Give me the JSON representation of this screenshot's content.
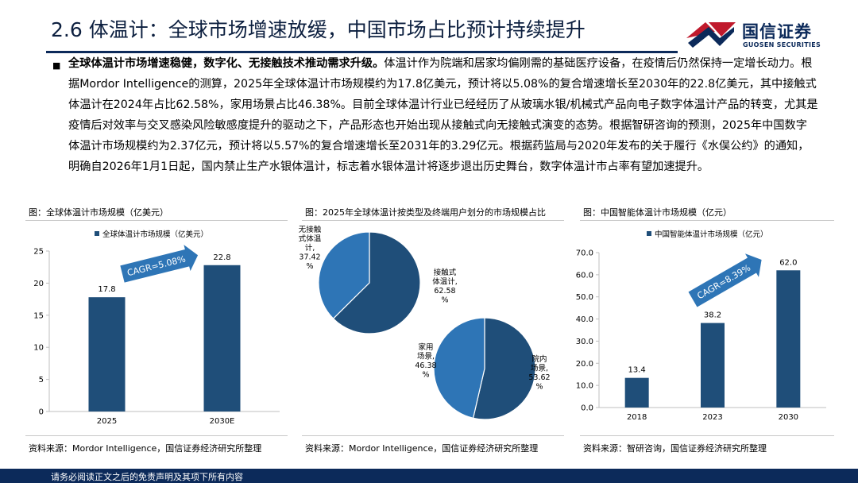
{
  "header": {
    "title": "2.6 体温计：全球市场增速放缓，中国市场占比预计持续提升",
    "logo_cn": "国信证券",
    "logo_en": "GUOSEN SECURITIES"
  },
  "body": {
    "bullet_symbol": "■",
    "lead": "全球体温计市场增速稳健，数字化、无接触技术推动需求升级。",
    "text": "体温计作为院端和居家均偏刚需的基础医疗设备，在疫情后仍然保持一定增长动力。根据Mordor Intelligence的测算，2025年全球体温计市场规模约为17.8亿美元，预计将以5.08%的复合增速增长至2030年的22.8亿美元，其中接触式体温计在2024年占比62.58%，家用场景占比46.38%。目前全球体温计行业已经经历了从玻璃水银/机械式产品向电子数字体温计产品的转变，尤其是疫情后对效率与交叉感染风险敏感度提升的驱动之下，产品形态也开始出现从接触式向无接触式演变的态势。根据智研咨询的预测，2025年中国数字体温计市场规模约为2.37亿元，预计将以5.57%的复合增速增长至2031年的3.29亿元。根据药监局与2020年发布的关于履行《水俣公约》的通知，明确自2026年1月1日起，国内禁止生产水银体温计，标志着水银体温计将逐步退出历史舞台，数字体温计市占率有望加速提升。"
  },
  "charts": {
    "left_title": "图：全球体温计市场规模（亿美元）",
    "left_source": "资料来源：Mordor Intelligence，国信证券经济研究所整理",
    "middle_title": "图：2025年全球体温计按类型及终端用户划分的市场规模占比",
    "middle_source": "资料来源：Mordor Intelligence，国信证券经济研究所整理",
    "right_title": "图：中国智能体温计市场规模（亿元）",
    "right_source": "资料来源：智研咨询，国信证券经济研究所整理"
  },
  "colors": {
    "navy": "#1f4e79",
    "light_blue": "#2e75b6",
    "arrow": "#2e75b6",
    "brand_red": "#c0192c",
    "brand_navy": "#0c2a5a"
  },
  "chart_data": [
    {
      "id": "global",
      "type": "bar",
      "title": "全球体温计市场规模（亿美元）",
      "legend": "全球体温计市场规模（亿美元）",
      "categories": [
        "2025",
        "2030E"
      ],
      "values": [
        17.8,
        22.8
      ],
      "value_labels": [
        "17.8",
        "22.8"
      ],
      "ylim": [
        0,
        25
      ],
      "yticks": [
        "0",
        "5",
        "10",
        "15",
        "20",
        "25"
      ],
      "annotation": "CAGR=5.08%"
    },
    {
      "id": "share",
      "type": "pie",
      "title": "2025年全球体温计按类型及终端用户划分的市场规模占比",
      "pies": [
        {
          "group": "type",
          "slices": [
            {
              "name": "接触式体温计",
              "label_lines": [
                "接触式",
                "体温计,",
                "62.58",
                "%"
              ],
              "value": 62.58,
              "color": "#1f4e79"
            },
            {
              "name": "无接触式体温计",
              "label_lines": [
                "无接触",
                "式体温",
                "计,",
                "37.42",
                "%"
              ],
              "value": 37.42,
              "color": "#2e75b6"
            }
          ]
        },
        {
          "group": "end_user",
          "slices": [
            {
              "name": "院内场景",
              "label_lines": [
                "院内",
                "场景,",
                "53.62",
                "%"
              ],
              "value": 53.62,
              "color": "#1f4e79"
            },
            {
              "name": "家用场景",
              "label_lines": [
                "家用",
                "场景,",
                "46.38",
                "%"
              ],
              "value": 46.38,
              "color": "#2e75b6"
            }
          ]
        }
      ]
    },
    {
      "id": "china",
      "type": "bar",
      "title": "中国智能体温计市场规模（亿元）",
      "legend": "中国智能体温计市场规模（亿元）",
      "categories": [
        "2018",
        "2023",
        "2030"
      ],
      "values": [
        13.4,
        38.2,
        62.0
      ],
      "value_labels": [
        "13.4",
        "38.2",
        "62.0"
      ],
      "ylim": [
        0,
        70
      ],
      "yticks": [
        "0.0",
        "10.0",
        "20.0",
        "30.0",
        "40.0",
        "50.0",
        "60.0",
        "70.0"
      ],
      "annotation": "CAGR=8.39%"
    }
  ],
  "footer": {
    "disclaimer": "请务必阅读正文之后的免责声明及其项下所有内容"
  }
}
